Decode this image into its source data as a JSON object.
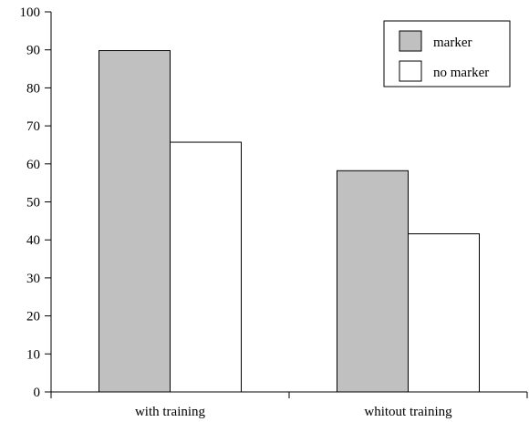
{
  "chart_data": {
    "type": "bar",
    "categories": [
      "with training",
      "whitout training"
    ],
    "series": [
      {
        "name": "marker",
        "values": [
          89.8,
          58.2
        ],
        "color": "#c0c0c0"
      },
      {
        "name": "no marker",
        "values": [
          65.7,
          41.6
        ],
        "color": "#ffffff"
      }
    ],
    "ylim": [
      0,
      100
    ],
    "yticks": [
      0,
      10,
      20,
      30,
      40,
      50,
      60,
      70,
      80,
      90,
      100
    ],
    "grid": false,
    "legend_position": "top-right",
    "title": "",
    "xlabel": "",
    "ylabel": ""
  }
}
